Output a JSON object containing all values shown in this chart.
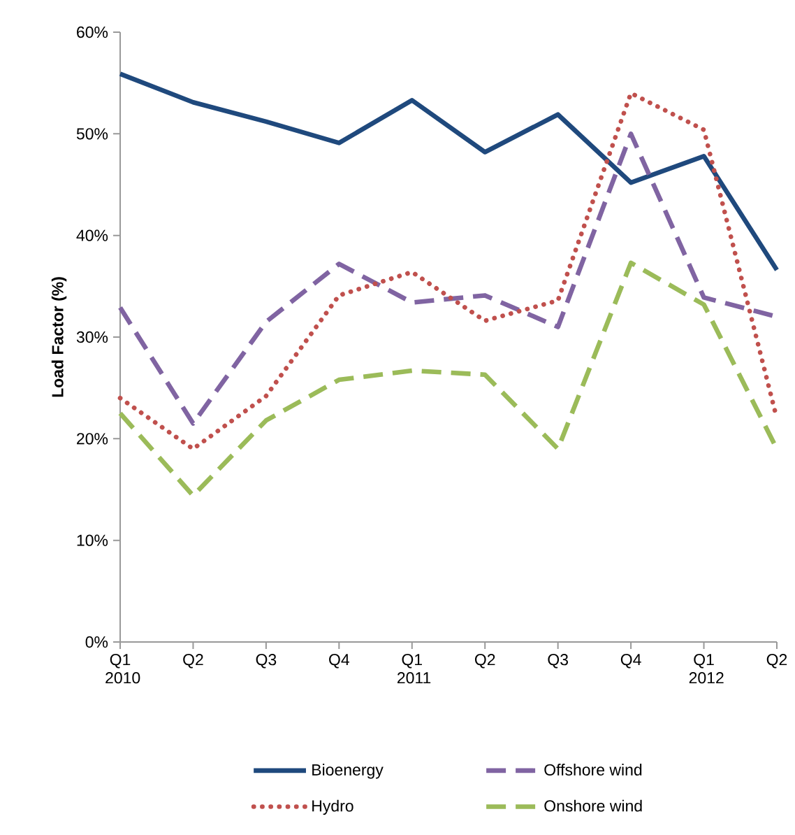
{
  "chart_data": {
    "type": "line",
    "ylabel": "**Load Factor (%)**",
    "categories": [
      "Q1 2010",
      "Q2",
      "Q3",
      "Q4",
      "Q1 2011",
      "Q2",
      "Q3",
      "Q4",
      "Q1 2012",
      "Q2"
    ],
    "series": [
      {
        "name": "Bioenergy",
        "color": "#1f497d",
        "line_style": "solid",
        "values": [
          55.9,
          53.1,
          51.2,
          49.1,
          53.3,
          48.2,
          51.9,
          45.2,
          47.8,
          36.6
        ]
      },
      {
        "name": "Offshore wind",
        "color": "#8064a2",
        "line_style": "dashed",
        "values": [
          32.9,
          21.5,
          31.5,
          37.2,
          33.4,
          34.1,
          31.0,
          50.0,
          33.9,
          32.0
        ]
      },
      {
        "name": "Hydro",
        "color": "#c0504d",
        "line_style": "dotted",
        "values": [
          24.0,
          19.0,
          24.2,
          34.1,
          36.4,
          31.6,
          33.6,
          54.0,
          50.4,
          22.0
        ]
      },
      {
        "name": "Onshore wind",
        "color": "#9bbb59",
        "line_style": "dashed",
        "values": [
          22.5,
          14.4,
          21.8,
          25.8,
          26.7,
          26.3,
          19.0,
          37.3,
          33.2,
          19.0
        ]
      }
    ],
    "ylim": [
      0,
      60
    ],
    "yticks": [
      {
        "value": 0,
        "label": "0%"
      },
      {
        "value": 10,
        "label": "10%"
      },
      {
        "value": 20,
        "label": "20%"
      },
      {
        "value": 30,
        "label": "30%"
      },
      {
        "value": 40,
        "label": "40%"
      },
      {
        "value": 50,
        "label": "50%"
      },
      {
        "value": 60,
        "label": "60%"
      }
    ],
    "grid": false,
    "legend": "bottom",
    "marker": "none"
  }
}
